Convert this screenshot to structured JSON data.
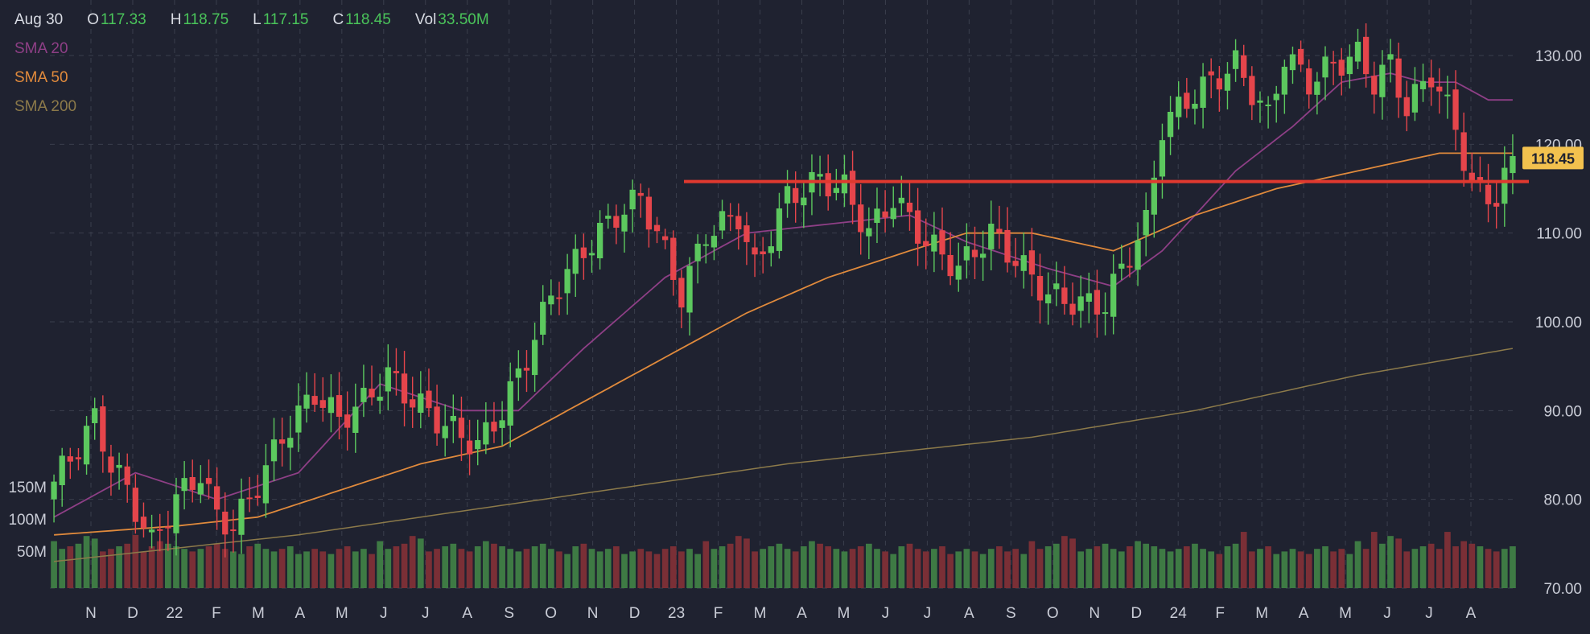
{
  "header": {
    "date": "Aug 30",
    "open_label": "O",
    "open": "117.33",
    "high_label": "H",
    "high": "118.75",
    "low_label": "L",
    "low": "117.15",
    "close_label": "C",
    "close": "118.45",
    "vol_label": "Vol",
    "vol": "33.50M"
  },
  "legend": [
    {
      "label": "SMA 20",
      "color": "#8e3f86"
    },
    {
      "label": "SMA 50",
      "color": "#e08a3c"
    },
    {
      "label": "SMA 200",
      "color": "#8c7a4a"
    }
  ],
  "colors": {
    "up": "#5cc85e",
    "down": "#e5454b",
    "vol_up": "#3e7a44",
    "vol_down": "#7a2f36",
    "grid": "#3a3e4c",
    "resistance": "#e0392f",
    "badge": "#f2c14e"
  },
  "chart_data": {
    "type": "candlestick",
    "period": "weekly",
    "y_axis": {
      "ticks": [
        "130.00",
        "120.00",
        "110.00",
        "100.00",
        "90.00",
        "80.00",
        "70.00"
      ],
      "range": [
        70,
        134
      ]
    },
    "volume_axis": {
      "ticks": [
        "150M",
        "100M",
        "50M"
      ],
      "range": [
        0,
        250
      ]
    },
    "x_axis": {
      "ticks": [
        "N",
        "D",
        "22",
        "F",
        "M",
        "A",
        "M",
        "J",
        "J",
        "A",
        "S",
        "O",
        "N",
        "D",
        "23",
        "F",
        "M",
        "A",
        "M",
        "J",
        "J",
        "A",
        "S",
        "O",
        "N",
        "D",
        "24",
        "F",
        "M",
        "A",
        "M",
        "J",
        "J",
        "A"
      ]
    },
    "last_price": "118.45",
    "resistance_level": 115.8,
    "anchors": [
      [
        0,
        82
      ],
      [
        3,
        86
      ],
      [
        5,
        89
      ],
      [
        7,
        84
      ],
      [
        9,
        81
      ],
      [
        12,
        75
      ],
      [
        15,
        80
      ],
      [
        18,
        83
      ],
      [
        20,
        78
      ],
      [
        22,
        77
      ],
      [
        24,
        80
      ],
      [
        28,
        87
      ],
      [
        32,
        92
      ],
      [
        35,
        89
      ],
      [
        38,
        91
      ],
      [
        41,
        94
      ],
      [
        43,
        92
      ],
      [
        47,
        89
      ],
      [
        52,
        86
      ],
      [
        55,
        90
      ],
      [
        58,
        96
      ],
      [
        61,
        103
      ],
      [
        65,
        108
      ],
      [
        69,
        112
      ],
      [
        72,
        114
      ],
      [
        74,
        110
      ],
      [
        77,
        103
      ],
      [
        80,
        110
      ],
      [
        84,
        112
      ],
      [
        86,
        106
      ],
      [
        90,
        114
      ],
      [
        94,
        116
      ],
      [
        97,
        115
      ],
      [
        100,
        110
      ],
      [
        103,
        114
      ],
      [
        107,
        109
      ],
      [
        111,
        106
      ],
      [
        115,
        110
      ],
      [
        119,
        106
      ],
      [
        122,
        103
      ],
      [
        126,
        102
      ],
      [
        129,
        102
      ],
      [
        131,
        106
      ],
      [
        134,
        111
      ],
      [
        136,
        122
      ],
      [
        139,
        125
      ],
      [
        142,
        127
      ],
      [
        145,
        129
      ],
      [
        147,
        126
      ],
      [
        149,
        123
      ],
      [
        151,
        130
      ],
      [
        154,
        127
      ],
      [
        157,
        129
      ],
      [
        160,
        130
      ],
      [
        162,
        127
      ],
      [
        164,
        129
      ],
      [
        166,
        124
      ],
      [
        169,
        128
      ],
      [
        172,
        122
      ],
      [
        174,
        115
      ],
      [
        177,
        114
      ],
      [
        179,
        118
      ]
    ],
    "sma20": [
      [
        0,
        78
      ],
      [
        10,
        83
      ],
      [
        20,
        80
      ],
      [
        30,
        83
      ],
      [
        40,
        93
      ],
      [
        50,
        90
      ],
      [
        57,
        90
      ],
      [
        65,
        97
      ],
      [
        75,
        105
      ],
      [
        85,
        110
      ],
      [
        95,
        111
      ],
      [
        105,
        112
      ],
      [
        112,
        109
      ],
      [
        122,
        106
      ],
      [
        130,
        104
      ],
      [
        136,
        108
      ],
      [
        145,
        117
      ],
      [
        152,
        122
      ],
      [
        158,
        127
      ],
      [
        164,
        128
      ],
      [
        168,
        127
      ],
      [
        172,
        127
      ],
      [
        176,
        125
      ]
    ],
    "sma50": [
      [
        0,
        76
      ],
      [
        15,
        77
      ],
      [
        25,
        78
      ],
      [
        35,
        81
      ],
      [
        45,
        84
      ],
      [
        55,
        86
      ],
      [
        65,
        91
      ],
      [
        75,
        96
      ],
      [
        85,
        101
      ],
      [
        95,
        105
      ],
      [
        105,
        108
      ],
      [
        112,
        110
      ],
      [
        120,
        110
      ],
      [
        130,
        108
      ],
      [
        140,
        112
      ],
      [
        150,
        115
      ],
      [
        160,
        117
      ],
      [
        170,
        119
      ],
      [
        179,
        119
      ]
    ],
    "sma200": [
      [
        0,
        73
      ],
      [
        30,
        76
      ],
      [
        60,
        80
      ],
      [
        90,
        84
      ],
      [
        120,
        87
      ],
      [
        140,
        90
      ],
      [
        160,
        94
      ],
      [
        179,
        97
      ]
    ],
    "volume_pattern": [
      60,
      45,
      50,
      55,
      70,
      65,
      40,
      45,
      50,
      55,
      45,
      40,
      50,
      60,
      55,
      50,
      45,
      40,
      45,
      50,
      55,
      45,
      40,
      35,
      50,
      55,
      45,
      40,
      45,
      50,
      35,
      40,
      45,
      40,
      35,
      45,
      50,
      40,
      45,
      35
    ]
  }
}
